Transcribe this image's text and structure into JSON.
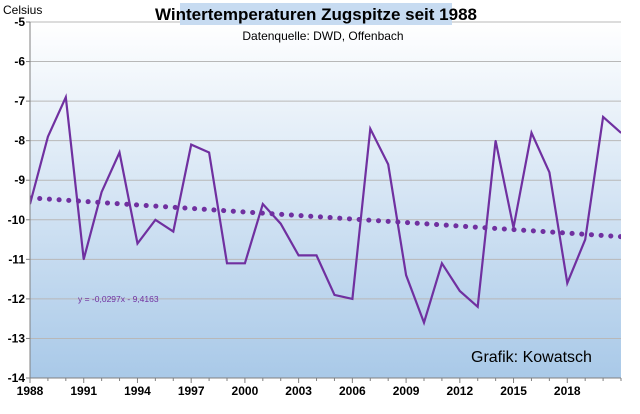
{
  "chart_data": {
    "type": "line",
    "title": "Wintertemperaturen Zugspitze seit 1988",
    "subtitle": "Datenquelle: DWD, Offenbach",
    "ylabel": "Celsius",
    "xlabel": "",
    "credit": "Grafik: Kowatsch",
    "ylim": [
      -14,
      -5
    ],
    "xlim": [
      1988,
      2021
    ],
    "y_ticks": [
      -5,
      -6,
      -7,
      -8,
      -9,
      -10,
      -11,
      -12,
      -13,
      -14
    ],
    "x_ticks": [
      1988,
      1991,
      1994,
      1997,
      2000,
      2003,
      2006,
      2009,
      2012,
      2015,
      2018
    ],
    "x_tick_labels": [
      "1988",
      "1991",
      "1994",
      "1997",
      "2000",
      "2003",
      "2006",
      "2009",
      "2012",
      "2015",
      "2018"
    ],
    "grid": "horizontal",
    "series": [
      {
        "color": "#7030a0",
        "x": [
          1988,
          1989,
          1990,
          1991,
          1992,
          1993,
          1994,
          1995,
          1996,
          1997,
          1998,
          1999,
          2000,
          2001,
          2002,
          2003,
          2004,
          2005,
          2006,
          2007,
          2008,
          2009,
          2010,
          2011,
          2012,
          2013,
          2014,
          2015,
          2016,
          2017,
          2018,
          2019,
          2020,
          2021
        ],
        "values": [
          -9.6,
          -7.9,
          -6.9,
          -11.0,
          -9.3,
          -8.3,
          -10.6,
          -10.0,
          -10.3,
          -8.1,
          -8.3,
          -11.1,
          -11.1,
          -9.6,
          -10.1,
          -10.9,
          -10.9,
          -11.9,
          -12.0,
          -7.7,
          -8.6,
          -11.4,
          -12.6,
          -11.1,
          -11.8,
          -12.2,
          -8.0,
          -10.2,
          -7.8,
          -8.8,
          -11.6,
          -10.5,
          -7.4,
          -7.8
        ]
      }
    ],
    "trendline": {
      "color": "#7030a0",
      "style": "dotted",
      "slope": -0.0297,
      "intercept_at_start": -9.4163,
      "equation_label": "y = -0,0297x - 9,4163"
    },
    "background_gradient": [
      "#ffffff",
      "#a9c9e8"
    ]
  }
}
